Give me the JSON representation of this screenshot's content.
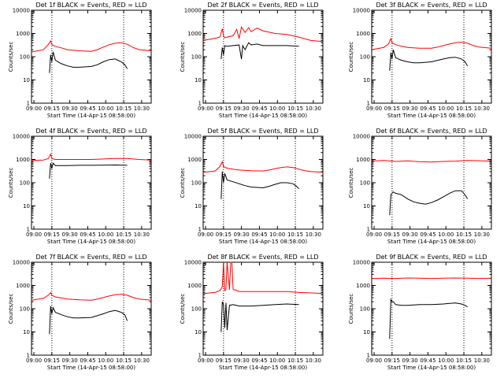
{
  "chart_data": [
    {
      "type": "line",
      "title": "Det 1f BLACK = Events, RED = LLD",
      "xlabel": "Start Time (14-Apr-15 08:58:00)",
      "ylabel": "Counts/sec",
      "x_tick_labels": [
        "09:00",
        "09:15",
        "09:30",
        "09:45",
        "10:00",
        "10:15",
        "10:30"
      ],
      "y_tick_labels": [
        "1",
        "10",
        "100",
        "1000",
        "10000"
      ],
      "y_scale": "log",
      "ylim": [
        1,
        10000
      ],
      "xlim_minutes": [
        0,
        100
      ],
      "vlines_minutes": [
        17,
        77
      ],
      "series": [
        {
          "color": "#ff0000",
          "x": [
            0,
            10,
            14,
            16,
            17,
            20,
            25,
            30,
            40,
            50,
            55,
            60,
            65,
            70,
            75,
            80,
            85,
            90,
            100
          ],
          "y": [
            160,
            200,
            330,
            480,
            330,
            280,
            240,
            200,
            180,
            170,
            200,
            260,
            330,
            380,
            400,
            340,
            250,
            200,
            180
          ]
        },
        {
          "color": "#000000",
          "x": [
            15,
            16,
            17,
            18,
            20,
            25,
            30,
            35,
            40,
            50,
            55,
            60,
            65,
            70,
            75,
            78,
            80
          ],
          "y": [
            20,
            120,
            60,
            160,
            70,
            50,
            40,
            35,
            35,
            38,
            45,
            60,
            75,
            80,
            60,
            45,
            30
          ]
        }
      ]
    },
    {
      "type": "line",
      "title": "Det 2f BLACK = Events, RED = LLD",
      "xlabel": "Start Time (14-Apr-15 08:58:00)",
      "ylabel": "Counts/sec",
      "x_tick_labels": [
        "09:00",
        "09:15",
        "09:30",
        "09:45",
        "10:00",
        "10:15",
        "10:30"
      ],
      "y_tick_labels": [
        "1",
        "10",
        "100",
        "1000",
        "10000"
      ],
      "y_scale": "log",
      "ylim": [
        1,
        10000
      ],
      "xlim_minutes": [
        0,
        100
      ],
      "vlines_minutes": [
        17,
        77
      ],
      "series": [
        {
          "color": "#ff0000",
          "x": [
            0,
            10,
            14,
            16,
            17,
            18,
            20,
            25,
            28,
            30,
            32,
            35,
            38,
            40,
            45,
            50,
            60,
            70,
            80,
            90,
            100
          ],
          "y": [
            500,
            620,
            700,
            1600,
            800,
            650,
            700,
            800,
            1500,
            600,
            1900,
            1100,
            1800,
            1200,
            1700,
            1300,
            1000,
            900,
            700,
            500,
            450
          ]
        },
        {
          "color": "#000000",
          "x": [
            15,
            16,
            17,
            18,
            20,
            25,
            30,
            32,
            33,
            35,
            38,
            40,
            45,
            50,
            60,
            70,
            80
          ],
          "y": [
            80,
            250,
            120,
            300,
            280,
            300,
            320,
            80,
            300,
            200,
            400,
            320,
            350,
            300,
            300,
            300,
            280
          ]
        }
      ]
    },
    {
      "type": "line",
      "title": "Det 3f BLACK = Events, RED = LLD",
      "xlabel": "Start Time (14-Apr-15 08:58:00)",
      "ylabel": "Counts/sec",
      "x_tick_labels": [
        "09:00",
        "09:15",
        "09:30",
        "09:45",
        "10:00",
        "10:15",
        "10:30"
      ],
      "y_tick_labels": [
        "1",
        "10",
        "100",
        "1000",
        "10000"
      ],
      "y_scale": "log",
      "ylim": [
        1,
        10000
      ],
      "xlim_minutes": [
        0,
        100
      ],
      "vlines_minutes": [
        17,
        77
      ],
      "series": [
        {
          "color": "#ff0000",
          "x": [
            0,
            10,
            14,
            16,
            17,
            20,
            25,
            30,
            40,
            50,
            55,
            60,
            65,
            70,
            75,
            80,
            85,
            90,
            100
          ],
          "y": [
            200,
            250,
            350,
            600,
            400,
            330,
            280,
            250,
            230,
            230,
            260,
            300,
            350,
            400,
            420,
            380,
            300,
            260,
            230
          ]
        },
        {
          "color": "#000000",
          "x": [
            15,
            16,
            17,
            18,
            20,
            25,
            30,
            35,
            40,
            50,
            55,
            60,
            65,
            70,
            75,
            78,
            80
          ],
          "y": [
            25,
            150,
            80,
            200,
            90,
            70,
            60,
            55,
            55,
            60,
            70,
            80,
            90,
            95,
            80,
            60,
            40
          ]
        }
      ]
    },
    {
      "type": "line",
      "title": "Det 4f BLACK = Events, RED = LLD",
      "xlabel": "Start Time (14-Apr-15 08:58:00)",
      "ylabel": "Counts/sec",
      "x_tick_labels": [
        "09:00",
        "09:15",
        "09:30",
        "09:45",
        "10:00",
        "10:15",
        "10:30"
      ],
      "y_tick_labels": [
        "1",
        "10",
        "100",
        "1000",
        "10000"
      ],
      "y_scale": "log",
      "ylim": [
        1,
        10000
      ],
      "xlim_minutes": [
        0,
        100
      ],
      "vlines_minutes": [
        17,
        77
      ],
      "series": [
        {
          "color": "#ff0000",
          "x": [
            0,
            10,
            14,
            16,
            17,
            20,
            30,
            40,
            50,
            60,
            70,
            80,
            90,
            100
          ],
          "y": [
            900,
            950,
            1100,
            1700,
            1100,
            1000,
            1000,
            1000,
            1000,
            1050,
            1100,
            1100,
            1000,
            950
          ]
        },
        {
          "color": "#000000",
          "x": [
            15,
            16,
            17,
            18,
            20,
            30,
            40,
            50,
            60,
            70,
            80
          ],
          "y": [
            150,
            700,
            400,
            700,
            550,
            550,
            560,
            560,
            570,
            580,
            560
          ]
        }
      ]
    },
    {
      "type": "line",
      "title": "Det 5f BLACK = Events, RED = LLD",
      "xlabel": "Start Time (14-Apr-15 08:58:00)",
      "ylabel": "Counts/sec",
      "x_tick_labels": [
        "09:00",
        "09:15",
        "09:30",
        "09:45",
        "10:00",
        "10:15",
        "10:30"
      ],
      "y_tick_labels": [
        "1",
        "10",
        "100",
        "1000",
        "10000"
      ],
      "y_scale": "log",
      "ylim": [
        1,
        10000
      ],
      "xlim_minutes": [
        0,
        100
      ],
      "vlines_minutes": [
        17,
        77
      ],
      "series": [
        {
          "color": "#ff0000",
          "x": [
            0,
            10,
            14,
            16,
            17,
            20,
            25,
            30,
            40,
            50,
            55,
            60,
            65,
            70,
            75,
            80,
            85,
            90,
            100
          ],
          "y": [
            280,
            320,
            500,
            800,
            500,
            420,
            380,
            350,
            330,
            320,
            350,
            400,
            450,
            480,
            450,
            380,
            330,
            300,
            280
          ]
        },
        {
          "color": "#000000",
          "x": [
            15,
            16,
            17,
            18,
            20,
            25,
            30,
            35,
            40,
            50,
            55,
            60,
            65,
            70,
            75,
            78,
            80
          ],
          "y": [
            20,
            300,
            100,
            250,
            130,
            110,
            90,
            75,
            65,
            60,
            70,
            85,
            100,
            100,
            90,
            70,
            55
          ]
        }
      ]
    },
    {
      "type": "line",
      "title": "Det 6f BLACK = Events, RED = LLD",
      "xlabel": "Start Time (14-Apr-15 08:58:00)",
      "ylabel": "Counts/sec",
      "x_tick_labels": [
        "09:00",
        "09:15",
        "09:30",
        "09:45",
        "10:00",
        "10:15",
        "10:30"
      ],
      "y_tick_labels": [
        "1",
        "10",
        "100",
        "1000",
        "10000"
      ],
      "y_scale": "log",
      "ylim": [
        1,
        10000
      ],
      "xlim_minutes": [
        0,
        100
      ],
      "vlines_minutes": [
        17,
        77
      ],
      "series": [
        {
          "color": "#ff0000",
          "x": [
            0,
            10,
            20,
            30,
            40,
            50,
            60,
            70,
            80,
            90,
            100
          ],
          "y": [
            850,
            900,
            820,
            870,
            800,
            780,
            820,
            850,
            900,
            880,
            850
          ]
        },
        {
          "color": "#000000",
          "x": [
            15,
            16,
            17,
            18,
            20,
            25,
            30,
            35,
            40,
            45,
            50,
            55,
            60,
            65,
            70,
            75,
            78,
            80
          ],
          "y": [
            4,
            30,
            35,
            40,
            35,
            30,
            20,
            15,
            13,
            12,
            14,
            18,
            25,
            35,
            45,
            45,
            30,
            20
          ]
        }
      ]
    },
    {
      "type": "line",
      "title": "Det 7f BLACK = Events, RED = LLD",
      "xlabel": "Start Time (14-Apr-15 08:58:00)",
      "ylabel": "Counts/sec",
      "x_tick_labels": [
        "09:00",
        "09:15",
        "09:30",
        "09:45",
        "10:00",
        "10:15",
        "10:30"
      ],
      "y_tick_labels": [
        "1",
        "10",
        "100",
        "1000",
        "10000"
      ],
      "y_scale": "log",
      "ylim": [
        1,
        10000
      ],
      "xlim_minutes": [
        0,
        100
      ],
      "vlines_minutes": [
        17,
        77
      ],
      "series": [
        {
          "color": "#ff0000",
          "x": [
            0,
            10,
            14,
            16,
            17,
            20,
            25,
            30,
            40,
            50,
            55,
            60,
            65,
            70,
            75,
            80,
            85,
            90,
            100
          ],
          "y": [
            230,
            280,
            380,
            500,
            380,
            320,
            290,
            260,
            240,
            230,
            260,
            300,
            350,
            400,
            420,
            380,
            300,
            260,
            230
          ]
        },
        {
          "color": "#000000",
          "x": [
            15,
            16,
            17,
            18,
            20,
            25,
            30,
            35,
            40,
            50,
            55,
            60,
            65,
            70,
            75,
            78,
            80
          ],
          "y": [
            8,
            130,
            60,
            110,
            70,
            55,
            45,
            40,
            40,
            42,
            50,
            60,
            75,
            85,
            70,
            55,
            30
          ]
        }
      ]
    },
    {
      "type": "line",
      "title": "Det 8f BLACK = Events, RED = LLD",
      "xlabel": "Start Time (14-Apr-15 08:58:00)",
      "ylabel": "Counts/sec",
      "x_tick_labels": [
        "09:00",
        "09:15",
        "09:30",
        "09:45",
        "10:00",
        "10:15",
        "10:30"
      ],
      "y_tick_labels": [
        "1",
        "10",
        "100",
        "1000",
        "10000"
      ],
      "y_scale": "log",
      "ylim": [
        1,
        10000
      ],
      "xlim_minutes": [
        0,
        100
      ],
      "vlines_minutes": [
        17,
        77
      ],
      "series": [
        {
          "color": "#ff0000",
          "x": [
            0,
            10,
            14,
            16,
            17,
            18,
            19,
            20,
            22,
            23,
            24,
            25,
            26,
            28,
            30,
            40,
            50,
            60,
            70,
            80,
            90,
            100
          ],
          "y": [
            450,
            500,
            600,
            900,
            10000,
            600,
            650,
            10000,
            650,
            10000,
            10000,
            700,
            650,
            600,
            550,
            550,
            550,
            550,
            550,
            500,
            480,
            450
          ]
        },
        {
          "color": "#000000",
          "x": [
            15,
            16,
            17,
            18,
            19,
            20,
            22,
            25,
            30,
            40,
            50,
            60,
            70,
            80
          ],
          "y": [
            10,
            200,
            150,
            15,
            180,
            12,
            140,
            150,
            130,
            130,
            140,
            150,
            160,
            150
          ]
        }
      ]
    },
    {
      "type": "line",
      "title": "Det 9f BLACK = Events, RED = LLD",
      "xlabel": "Start Time (14-Apr-15 08:58:00)",
      "ylabel": "Counts/sec",
      "x_tick_labels": [
        "09:00",
        "09:15",
        "09:30",
        "09:45",
        "10:00",
        "10:15",
        "10:30"
      ],
      "y_tick_labels": [
        "1",
        "10",
        "100",
        "1000",
        "10000"
      ],
      "y_scale": "log",
      "ylim": [
        1,
        10000
      ],
      "xlim_minutes": [
        0,
        100
      ],
      "vlines_minutes": [
        17,
        77
      ],
      "series": [
        {
          "color": "#ff0000",
          "x": [
            0,
            10,
            20,
            30,
            40,
            50,
            60,
            70,
            80,
            90,
            100
          ],
          "y": [
            2000,
            2050,
            2000,
            2100,
            2050,
            2000,
            2050,
            2100,
            2050,
            2000,
            2050
          ]
        },
        {
          "color": "#000000",
          "x": [
            15,
            16,
            17,
            18,
            20,
            25,
            30,
            35,
            40,
            50,
            55,
            60,
            65,
            70,
            75,
            78,
            80
          ],
          "y": [
            5,
            250,
            200,
            200,
            150,
            140,
            140,
            145,
            150,
            150,
            155,
            160,
            170,
            175,
            160,
            140,
            120
          ]
        }
      ]
    }
  ]
}
